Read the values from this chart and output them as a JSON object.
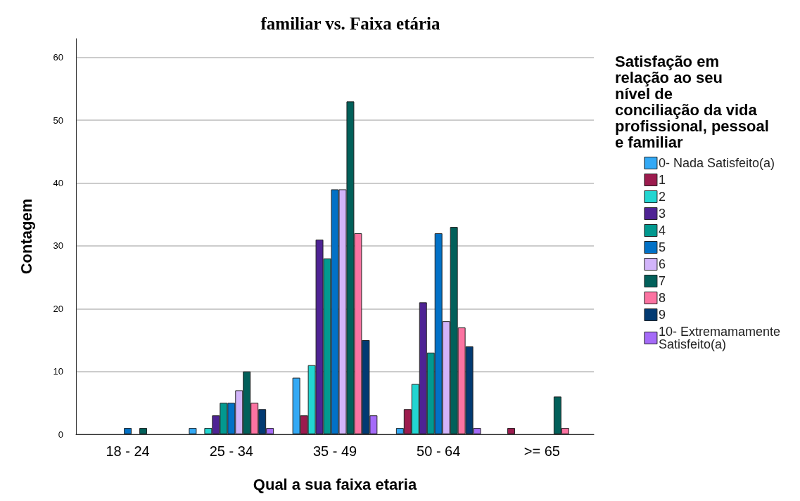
{
  "chart_data": {
    "type": "bar",
    "title": "familiar vs. Faixa etária",
    "xlabel": "Qual a sua faixa etaria",
    "ylabel": "Contagem",
    "legend_title": "Satisfação em relação ao seu nível de conciliação da vida profissional, pessoal e familiar",
    "categories": [
      "18 - 24",
      "25 - 34",
      "35 - 49",
      "50 - 64",
      ">= 65"
    ],
    "series": [
      {
        "name": "0- Nada Satisfeito(a)",
        "color": "#33a9f5",
        "values": [
          0,
          1,
          9,
          1,
          0
        ]
      },
      {
        "name": "1",
        "color": "#9c1b4e",
        "values": [
          0,
          0,
          3,
          4,
          1
        ]
      },
      {
        "name": "2",
        "color": "#22d6d1",
        "values": [
          0,
          1,
          11,
          8,
          0
        ]
      },
      {
        "name": "3",
        "color": "#4e2394",
        "values": [
          0,
          3,
          31,
          21,
          0
        ]
      },
      {
        "name": "4",
        "color": "#02998f",
        "values": [
          0,
          5,
          28,
          13,
          0
        ]
      },
      {
        "name": "5",
        "color": "#0271c6",
        "values": [
          1,
          5,
          39,
          32,
          0
        ]
      },
      {
        "name": "6",
        "color": "#d2b4fa",
        "values": [
          0,
          7,
          39,
          18,
          0
        ]
      },
      {
        "name": "7",
        "color": "#02605a",
        "values": [
          1,
          10,
          53,
          33,
          6
        ]
      },
      {
        "name": "8",
        "color": "#fb73a1",
        "values": [
          0,
          5,
          32,
          17,
          1
        ]
      },
      {
        "name": "9",
        "color": "#023a72",
        "values": [
          0,
          4,
          15,
          14,
          0
        ]
      },
      {
        "name": "10- Extremamamente Satisfeito(a)",
        "color": "#a56bf8",
        "values": [
          0,
          1,
          3,
          1,
          0
        ]
      }
    ],
    "ylim": [
      0,
      63
    ],
    "yticks": [
      0,
      10,
      20,
      30,
      40,
      50,
      60
    ],
    "grid": "y",
    "legend": "right"
  }
}
